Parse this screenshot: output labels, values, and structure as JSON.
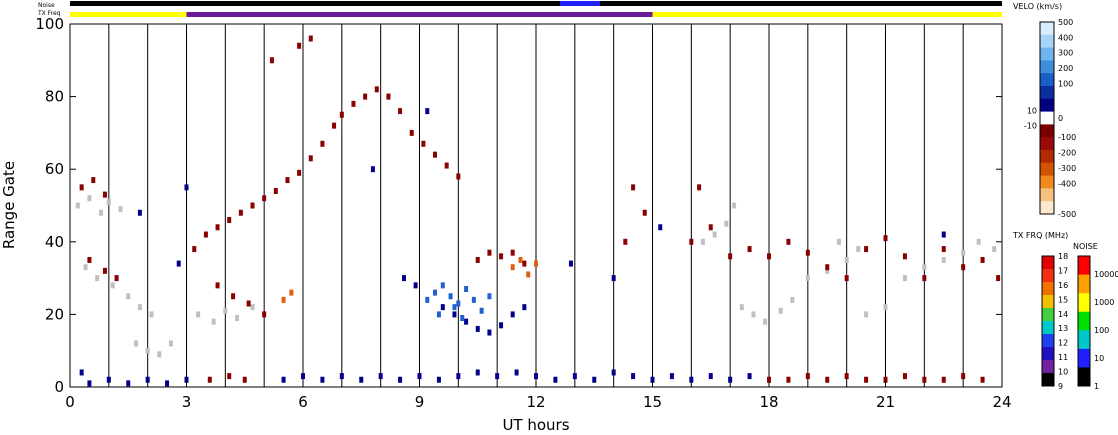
{
  "chart_data": {
    "type": "scatter",
    "xlabel": "UT hours",
    "ylabel": "Range Gate",
    "xlim": [
      0,
      24
    ],
    "ylim": [
      0,
      100
    ],
    "x_ticks": [
      "0",
      "3",
      "6",
      "9",
      "12",
      "15",
      "18",
      "21",
      "24"
    ],
    "y_ticks": [
      "0",
      "20",
      "40",
      "60",
      "80",
      "100"
    ],
    "noise_label": "Noise",
    "txfreq_label": "TX Freq",
    "txfreq_segments": [
      {
        "start": 0,
        "end": 3.0,
        "color": "#ffff00"
      },
      {
        "start": 3.0,
        "end": 15.0,
        "color": "#6a1b9a"
      },
      {
        "start": 15.0,
        "end": 24,
        "color": "#ffff00"
      }
    ],
    "velocity_scale": {
      "title": "VELO (km/s)",
      "ticks": [
        "500",
        "400",
        "300",
        "200",
        "100",
        "10",
        "0",
        "-10",
        "-100",
        "-200",
        "-300",
        "-400",
        "-500"
      ]
    },
    "txfrq_scale": {
      "title": "TX FRQ (MHz)",
      "ticks": [
        "18",
        "17",
        "16",
        "15",
        "14",
        "13",
        "12",
        "11",
        "10",
        "9"
      ]
    },
    "noise_scale": {
      "title": "NOISE",
      "ticks": [
        "10000",
        "1000",
        "100",
        "10",
        "1"
      ]
    },
    "colors": {
      "ground_scatter": "#c0c0c0",
      "negative_velocity": "#8b0000",
      "positive_velocity": "#00008b",
      "blue_patch": "#2060d0",
      "orange_patch": "#e06010"
    },
    "series": [
      {
        "color": "#c0c0c0",
        "points": [
          [
            0.2,
            50
          ],
          [
            0.5,
            52
          ],
          [
            0.8,
            48
          ],
          [
            1.0,
            51
          ],
          [
            1.3,
            49
          ],
          [
            0.4,
            33
          ],
          [
            0.7,
            30
          ],
          [
            1.1,
            28
          ],
          [
            1.5,
            25
          ],
          [
            1.8,
            22
          ],
          [
            2.1,
            20
          ],
          [
            1.7,
            12
          ],
          [
            2.0,
            10
          ],
          [
            2.3,
            9
          ],
          [
            2.6,
            12
          ],
          [
            3.3,
            20
          ],
          [
            3.7,
            18
          ],
          [
            4.0,
            21
          ],
          [
            4.3,
            19
          ],
          [
            4.7,
            22
          ],
          [
            16.3,
            40
          ],
          [
            16.6,
            42
          ],
          [
            16.9,
            45
          ],
          [
            17.1,
            50
          ],
          [
            17.3,
            22
          ],
          [
            17.6,
            20
          ],
          [
            17.9,
            18
          ],
          [
            18.3,
            21
          ],
          [
            18.6,
            24
          ],
          [
            19.0,
            30
          ],
          [
            19.5,
            32
          ],
          [
            20.0,
            35
          ],
          [
            20.5,
            20
          ],
          [
            21.0,
            22
          ],
          [
            21.5,
            30
          ],
          [
            22.0,
            33
          ],
          [
            22.5,
            35
          ],
          [
            23.0,
            37
          ],
          [
            23.4,
            40
          ],
          [
            23.8,
            38
          ],
          [
            19.8,
            40
          ],
          [
            20.3,
            38
          ]
        ]
      },
      {
        "color": "#8b0000",
        "points": [
          [
            0.3,
            55
          ],
          [
            0.6,
            57
          ],
          [
            0.9,
            53
          ],
          [
            0.5,
            35
          ],
          [
            0.9,
            32
          ],
          [
            1.2,
            30
          ],
          [
            3.2,
            38
          ],
          [
            3.5,
            42
          ],
          [
            3.8,
            44
          ],
          [
            4.1,
            46
          ],
          [
            4.4,
            48
          ],
          [
            4.7,
            50
          ],
          [
            5.0,
            52
          ],
          [
            5.3,
            54
          ],
          [
            5.6,
            57
          ],
          [
            5.9,
            59
          ],
          [
            6.2,
            63
          ],
          [
            6.5,
            67
          ],
          [
            6.8,
            72
          ],
          [
            7.0,
            75
          ],
          [
            7.3,
            78
          ],
          [
            7.6,
            80
          ],
          [
            7.9,
            82
          ],
          [
            8.2,
            80
          ],
          [
            8.5,
            76
          ],
          [
            8.8,
            70
          ],
          [
            9.1,
            67
          ],
          [
            9.4,
            64
          ],
          [
            9.7,
            61
          ],
          [
            10.0,
            58
          ],
          [
            10.5,
            35
          ],
          [
            10.8,
            37
          ],
          [
            11.1,
            36
          ],
          [
            11.4,
            37
          ],
          [
            11.7,
            34
          ],
          [
            3.8,
            28
          ],
          [
            4.2,
            25
          ],
          [
            4.6,
            23
          ],
          [
            5.0,
            20
          ],
          [
            14.3,
            40
          ],
          [
            14.5,
            55
          ],
          [
            14.8,
            48
          ],
          [
            16.0,
            40
          ],
          [
            16.2,
            55
          ],
          [
            16.5,
            44
          ],
          [
            17.0,
            36
          ],
          [
            17.5,
            38
          ],
          [
            18.0,
            36
          ],
          [
            18.5,
            40
          ],
          [
            19.0,
            37
          ],
          [
            19.5,
            33
          ],
          [
            20.0,
            30
          ],
          [
            20.5,
            38
          ],
          [
            21.0,
            41
          ],
          [
            21.5,
            36
          ],
          [
            22.0,
            30
          ],
          [
            22.5,
            38
          ],
          [
            23.0,
            33
          ],
          [
            23.5,
            35
          ],
          [
            23.9,
            30
          ],
          [
            18.0,
            2
          ],
          [
            18.5,
            2
          ],
          [
            19.0,
            3
          ],
          [
            19.5,
            2
          ],
          [
            20.0,
            3
          ],
          [
            20.5,
            2
          ],
          [
            21.0,
            2
          ],
          [
            21.5,
            3
          ],
          [
            22.0,
            2
          ],
          [
            22.5,
            2
          ],
          [
            23.0,
            3
          ],
          [
            23.5,
            2
          ],
          [
            3.6,
            2
          ],
          [
            4.1,
            3
          ],
          [
            4.5,
            2
          ],
          [
            5.9,
            94
          ],
          [
            6.2,
            96
          ],
          [
            5.2,
            90
          ]
        ]
      },
      {
        "color": "#00008b",
        "points": [
          [
            0.5,
            1
          ],
          [
            1.0,
            2
          ],
          [
            1.5,
            1
          ],
          [
            2.0,
            2
          ],
          [
            2.5,
            1
          ],
          [
            3.0,
            2
          ],
          [
            5.5,
            2
          ],
          [
            6.0,
            3
          ],
          [
            6.5,
            2
          ],
          [
            7.0,
            3
          ],
          [
            7.5,
            2
          ],
          [
            8.0,
            3
          ],
          [
            8.5,
            2
          ],
          [
            9.0,
            3
          ],
          [
            9.5,
            2
          ],
          [
            10.0,
            3
          ],
          [
            10.5,
            4
          ],
          [
            11.0,
            3
          ],
          [
            11.5,
            4
          ],
          [
            12.0,
            3
          ],
          [
            12.5,
            2
          ],
          [
            13.0,
            3
          ],
          [
            13.5,
            2
          ],
          [
            14.0,
            4
          ],
          [
            14.5,
            3
          ],
          [
            15.0,
            2
          ],
          [
            15.5,
            3
          ],
          [
            16.0,
            2
          ],
          [
            16.5,
            3
          ],
          [
            17.0,
            2
          ],
          [
            17.5,
            3
          ],
          [
            9.6,
            22
          ],
          [
            9.9,
            20
          ],
          [
            10.2,
            18
          ],
          [
            10.5,
            16
          ],
          [
            10.8,
            15
          ],
          [
            11.1,
            17
          ],
          [
            11.4,
            20
          ],
          [
            11.7,
            22
          ],
          [
            8.6,
            30
          ],
          [
            8.9,
            28
          ],
          [
            9.2,
            76
          ],
          [
            7.8,
            60
          ],
          [
            12.9,
            34
          ],
          [
            14.0,
            30
          ],
          [
            15.2,
            44
          ],
          [
            2.8,
            34
          ],
          [
            3.0,
            55
          ],
          [
            0.3,
            4
          ],
          [
            1.8,
            48
          ],
          [
            22.5,
            42
          ]
        ]
      },
      {
        "color": "#2060d0",
        "points": [
          [
            9.2,
            24
          ],
          [
            9.4,
            26
          ],
          [
            9.6,
            28
          ],
          [
            9.8,
            25
          ],
          [
            10.0,
            23
          ],
          [
            10.2,
            27
          ],
          [
            10.4,
            24
          ],
          [
            10.6,
            21
          ],
          [
            10.8,
            25
          ],
          [
            9.5,
            20
          ],
          [
            9.9,
            22
          ],
          [
            10.1,
            19
          ]
        ]
      },
      {
        "color": "#e06010",
        "points": [
          [
            11.4,
            33
          ],
          [
            11.6,
            35
          ],
          [
            11.8,
            31
          ],
          [
            12.0,
            34
          ],
          [
            5.5,
            24
          ],
          [
            5.7,
            26
          ]
        ]
      }
    ]
  }
}
